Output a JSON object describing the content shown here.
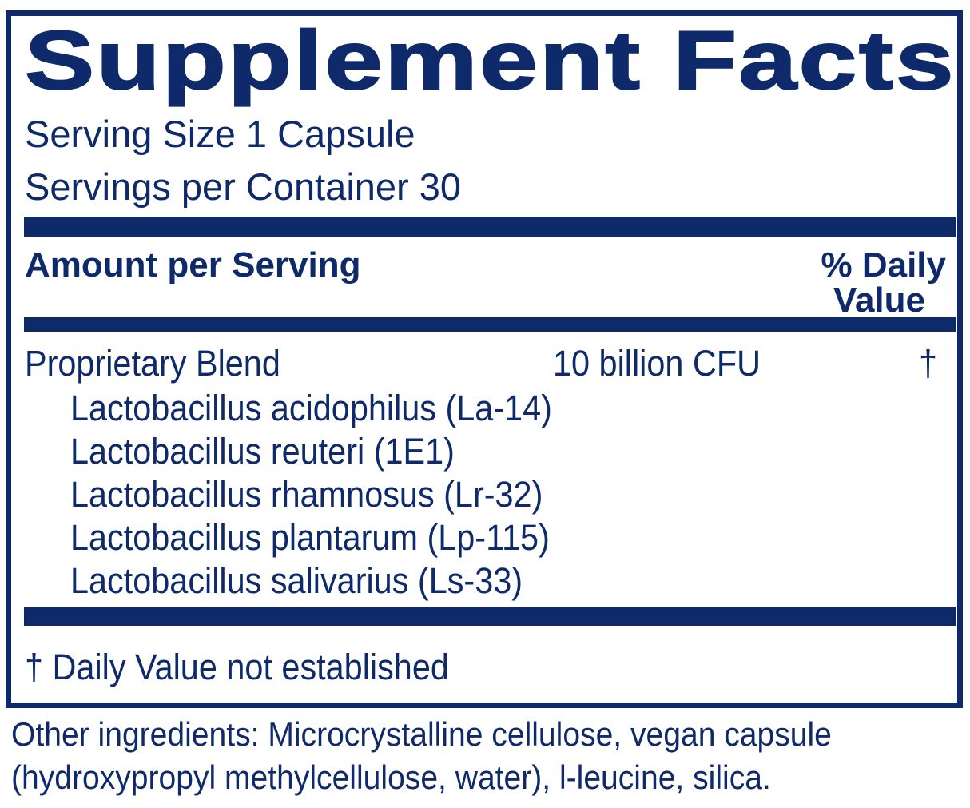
{
  "title": "Supplement Facts",
  "serving_size": "Serving Size 1 Capsule",
  "servings_per_container": "Servings per Container 30",
  "header": {
    "amount": "Amount per Serving",
    "dv_line1": "% Daily",
    "dv_line2": "Value"
  },
  "blend": {
    "name": "Proprietary Blend",
    "amount": "10 billion CFU",
    "dv": "†"
  },
  "ingredients": [
    "Lactobacillus acidophilus (La-14)",
    "Lactobacillus reuteri (1E1)",
    "Lactobacillus rhamnosus (Lr-32)",
    "Lactobacillus plantarum (Lp-115)",
    "Lactobacillus salivarius (Ls-33)"
  ],
  "footnote": "† Daily Value not established",
  "other_ingredients": [
    "Other ingredients:  Microcrystalline cellulose, vegan capsule",
    "(hydroxypropyl methylcellulose, water), l-leucine, silica."
  ],
  "colors": {
    "ink": "#0f2a6b"
  }
}
